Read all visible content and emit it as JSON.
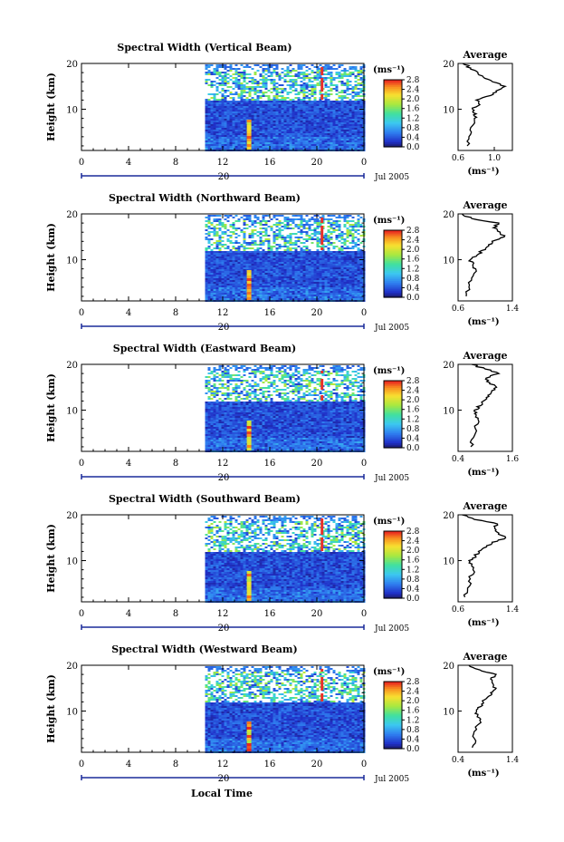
{
  "figure": {
    "x_axis_title": "Local Time",
    "colors": {
      "ink": "#000000",
      "axis_blue": "#1a2b9a",
      "stripe_red": "#e8302a"
    }
  },
  "chart_data": [
    {
      "type": "heatmap",
      "title": "Spectral Width (Vertical Beam)",
      "ylabel": "Height (km)",
      "yticks": [
        "10",
        "20"
      ],
      "xticks": [
        "0",
        "4",
        "8",
        "12",
        "16",
        "20",
        "0"
      ],
      "x_range_hours": [
        0,
        24
      ],
      "y_range_km": [
        1,
        20
      ],
      "data_start_hour": 10.5,
      "date_tick": "20",
      "date_label": "Jul 2005",
      "colorbar": {
        "unit": "(ms⁻¹)",
        "ticks": [
          "2.8",
          "2.4",
          "2.0",
          "1.6",
          "1.2",
          "0.8",
          "0.4",
          "0.0"
        ],
        "range": [
          0,
          2.8
        ]
      },
      "profile": {
        "title": "Average",
        "xticks": [
          "0.6",
          "1.0"
        ],
        "xrange": [
          0.6,
          1.2
        ],
        "unit": "(ms⁻¹)",
        "yticks": [
          "10",
          "20"
        ],
        "heights_km": [
          2,
          4,
          6,
          8,
          9,
          10,
          11,
          12,
          13,
          14,
          15,
          16,
          17,
          18,
          19,
          20
        ],
        "values": [
          0.7,
          0.72,
          0.74,
          0.78,
          0.8,
          0.76,
          0.84,
          0.8,
          0.96,
          1.02,
          1.12,
          0.98,
          0.88,
          0.82,
          0.74,
          0.65
        ]
      }
    },
    {
      "type": "heatmap",
      "title": "Spectral Width (Northward Beam)",
      "ylabel": "Height (km)",
      "yticks": [
        "10",
        "20"
      ],
      "xticks": [
        "0",
        "4",
        "8",
        "12",
        "16",
        "20",
        "0"
      ],
      "x_range_hours": [
        0,
        24
      ],
      "y_range_km": [
        1,
        20
      ],
      "data_start_hour": 10.5,
      "date_tick": "20",
      "date_label": "Jul 2005",
      "colorbar": {
        "unit": "(ms⁻¹)",
        "ticks": [
          "2.8",
          "2.4",
          "2.0",
          "1.6",
          "1.2",
          "0.8",
          "0.4",
          "0.0"
        ],
        "range": [
          0,
          2.8
        ]
      },
      "profile": {
        "title": "Average",
        "xticks": [
          "0.6",
          "1.4"
        ],
        "xrange": [
          0.6,
          1.4
        ],
        "unit": "(ms⁻¹)",
        "yticks": [
          "10",
          "20"
        ],
        "heights_km": [
          2,
          4,
          6,
          8,
          9,
          10,
          11,
          12,
          13,
          14,
          15,
          16,
          17,
          18,
          19,
          20
        ],
        "values": [
          0.72,
          0.76,
          0.8,
          0.86,
          0.82,
          0.78,
          0.88,
          0.95,
          1.05,
          1.1,
          1.28,
          1.22,
          1.12,
          1.2,
          0.8,
          0.66
        ]
      }
    },
    {
      "type": "heatmap",
      "title": "Spectral Width (Eastward Beam)",
      "ylabel": "Height (km)",
      "yticks": [
        "10",
        "20"
      ],
      "xticks": [
        "0",
        "4",
        "8",
        "12",
        "16",
        "20",
        "0"
      ],
      "x_range_hours": [
        0,
        24
      ],
      "y_range_km": [
        1,
        20
      ],
      "data_start_hour": 10.5,
      "date_tick": "20",
      "date_label": "Jul 2005",
      "colorbar": {
        "unit": "(ms⁻¹)",
        "ticks": [
          "2.8",
          "2.4",
          "2.0",
          "1.6",
          "1.2",
          "0.8",
          "0.4",
          "0.0"
        ],
        "range": [
          0,
          2.8
        ]
      },
      "profile": {
        "title": "Average",
        "xticks": [
          "0.4",
          "1.6"
        ],
        "xrange": [
          0.4,
          1.6
        ],
        "unit": "(ms⁻¹)",
        "yticks": [
          "10",
          "20"
        ],
        "heights_km": [
          2,
          4,
          6,
          8,
          9,
          10,
          11,
          12,
          13,
          14,
          15,
          16,
          17,
          18,
          19,
          20
        ],
        "values": [
          0.68,
          0.74,
          0.78,
          0.84,
          0.8,
          0.76,
          0.9,
          0.96,
          1.08,
          1.14,
          1.25,
          1.1,
          1.02,
          1.3,
          1.0,
          0.7
        ]
      }
    },
    {
      "type": "heatmap",
      "title": "Spectral Width (Southward Beam)",
      "ylabel": "Height (km)",
      "yticks": [
        "10",
        "20"
      ],
      "xticks": [
        "0",
        "4",
        "8",
        "12",
        "16",
        "20",
        "0"
      ],
      "x_range_hours": [
        0,
        24
      ],
      "y_range_km": [
        1,
        20
      ],
      "data_start_hour": 10.5,
      "date_tick": "20",
      "date_label": "Jul 2005",
      "colorbar": {
        "unit": "(ms⁻¹)",
        "ticks": [
          "2.8",
          "2.4",
          "2.0",
          "1.6",
          "1.2",
          "0.8",
          "0.4",
          "0.0"
        ],
        "range": [
          0,
          2.8
        ]
      },
      "profile": {
        "title": "Average",
        "xticks": [
          "0.6",
          "1.4"
        ],
        "xrange": [
          0.6,
          1.4
        ],
        "unit": "(ms⁻¹)",
        "yticks": [
          "10",
          "20"
        ],
        "heights_km": [
          2,
          4,
          6,
          8,
          9,
          10,
          11,
          12,
          13,
          14,
          15,
          16,
          17,
          18,
          19,
          20
        ],
        "values": [
          0.7,
          0.74,
          0.78,
          0.82,
          0.8,
          0.76,
          0.86,
          0.9,
          1.02,
          1.1,
          1.3,
          1.2,
          1.14,
          1.18,
          0.84,
          0.66
        ]
      }
    },
    {
      "type": "heatmap",
      "title": "Spectral Width (Westward Beam)",
      "ylabel": "Height (km)",
      "yticks": [
        "10",
        "20"
      ],
      "xticks": [
        "0",
        "4",
        "8",
        "12",
        "16",
        "20",
        "0"
      ],
      "x_range_hours": [
        0,
        24
      ],
      "y_range_km": [
        1,
        20
      ],
      "data_start_hour": 10.5,
      "date_tick": "20",
      "date_label": "Jul 2005",
      "colorbar": {
        "unit": "(ms⁻¹)",
        "ticks": [
          "2.8",
          "2.4",
          "2.0",
          "1.6",
          "1.2",
          "0.8",
          "0.4",
          "0.0"
        ],
        "range": [
          0,
          2.8
        ]
      },
      "profile": {
        "title": "Average",
        "xticks": [
          "0.4",
          "1.4"
        ],
        "xrange": [
          0.4,
          1.4
        ],
        "unit": "(ms⁻¹)",
        "yticks": [
          "10",
          "20"
        ],
        "heights_km": [
          2,
          4,
          6,
          8,
          9,
          10,
          11,
          12,
          13,
          14,
          15,
          16,
          17,
          18,
          19,
          20
        ],
        "values": [
          0.66,
          0.7,
          0.74,
          0.8,
          0.76,
          0.74,
          0.82,
          0.86,
          0.94,
          1.0,
          1.1,
          1.04,
          1.0,
          1.1,
          0.8,
          0.6
        ]
      }
    }
  ]
}
